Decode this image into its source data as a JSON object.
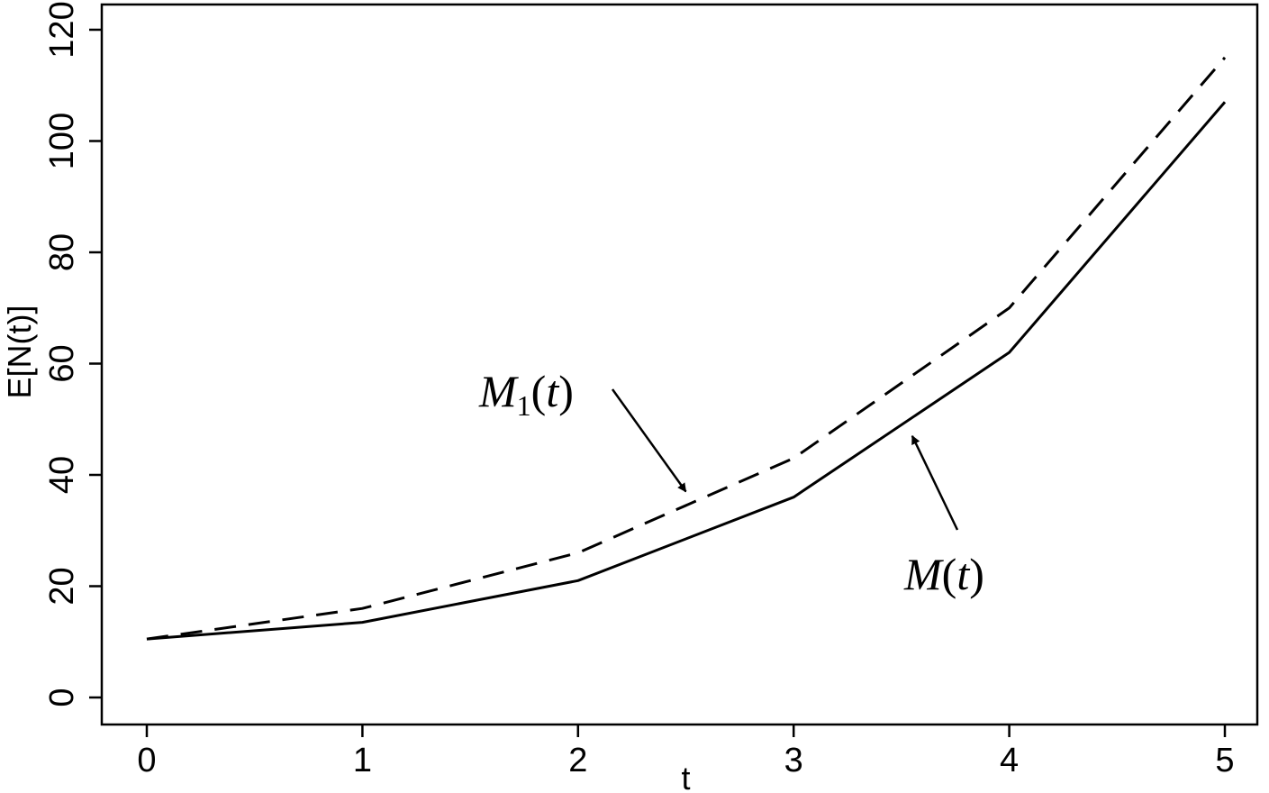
{
  "chart_data": {
    "type": "line",
    "xlabel": "t",
    "ylabel": "E[N(t)]",
    "xlim": [
      0,
      5
    ],
    "ylim": [
      0,
      120
    ],
    "xticks": [
      0,
      1,
      2,
      3,
      4,
      5
    ],
    "yticks": [
      0,
      20,
      40,
      60,
      80,
      100,
      120
    ],
    "grid": false,
    "series": [
      {
        "name": "M(t)",
        "style": "solid",
        "x": [
          0,
          1,
          2,
          3,
          4,
          5
        ],
        "y": [
          10.5,
          13.5,
          21,
          36,
          62,
          107
        ]
      },
      {
        "name": "M1(t)",
        "style": "dashed",
        "x": [
          0,
          1,
          2,
          3,
          4,
          5
        ],
        "y": [
          10.5,
          16,
          26,
          43,
          70,
          115
        ]
      }
    ],
    "annotations": [
      {
        "series": "M1(t)",
        "text_main": "M",
        "text_sub": "1",
        "text_tail": "(t)",
        "points_to": {
          "x": 2.5,
          "y": 37
        }
      },
      {
        "series": "M(t)",
        "text_main": "M",
        "text_sub": "",
        "text_tail": "(t)",
        "points_to": {
          "x": 3.55,
          "y": 47
        }
      }
    ]
  }
}
